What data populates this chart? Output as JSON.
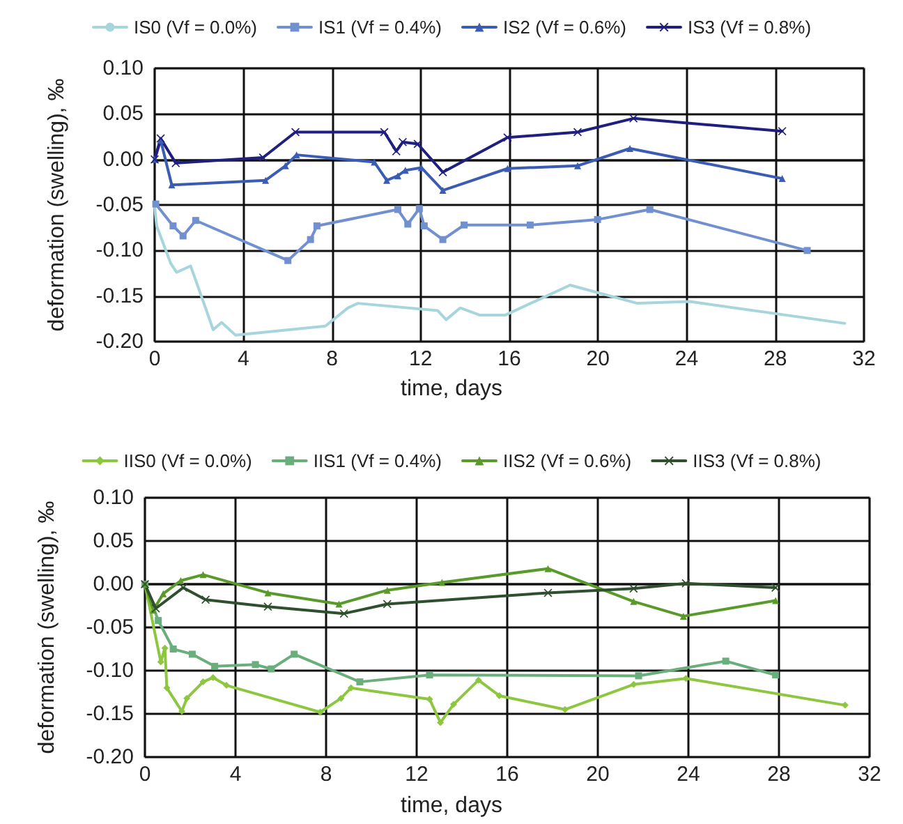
{
  "chart_data": [
    {
      "type": "line",
      "xlabel": "time, days",
      "ylabel": "deformation (swelling), ‰",
      "xlim": [
        0,
        32
      ],
      "xticks": [
        0,
        4,
        8,
        12,
        16,
        20,
        24,
        28,
        32
      ],
      "ylim": [
        -0.2,
        0.1
      ],
      "yticks": [
        {
          "value": -0.2,
          "label": "-0.20"
        },
        {
          "value": -0.15,
          "label": "-0.15"
        },
        {
          "value": -0.1,
          "label": "-0.10"
        },
        {
          "value": -0.05,
          "label": "-0.05"
        },
        {
          "value": 0,
          "label": "0.00"
        },
        {
          "value": 0.05,
          "label": "0.05"
        },
        {
          "value": 0.1,
          "label": "0.10"
        }
      ],
      "grid": true,
      "legend": "top",
      "series": [
        {
          "name": "IS0 (Vf = 0.0%)",
          "color": "#a6d5dc",
          "marker": "none",
          "x": [
            0,
            0.09,
            0.72,
            0.99,
            1.62,
            1.96,
            2.64,
            3.02,
            3.65,
            7.7,
            8.72,
            9.17,
            12.77,
            13.15,
            13.78,
            14.68,
            15.81,
            18.74,
            21.78,
            24.14,
            31.13
          ],
          "values": [
            -0.052,
            -0.073,
            -0.114,
            -0.124,
            -0.117,
            -0.14,
            -0.187,
            -0.179,
            -0.193,
            -0.183,
            -0.163,
            -0.158,
            -0.166,
            -0.176,
            -0.163,
            -0.171,
            -0.171,
            -0.138,
            -0.158,
            -0.156,
            -0.18
          ]
        },
        {
          "name": "IS1 (Vf = 0.4%)",
          "color": "#7090d0",
          "marker": "square",
          "x": [
            0.05,
            0.83,
            1.28,
            1.85,
            6.01,
            7.03,
            7.32,
            10.97,
            11.42,
            11.94,
            12.16,
            13.0,
            13.96,
            16.94,
            19.98,
            22.34,
            29.44
          ],
          "values": [
            -0.049,
            -0.073,
            -0.084,
            -0.067,
            -0.111,
            -0.088,
            -0.073,
            -0.055,
            -0.071,
            -0.054,
            -0.073,
            -0.088,
            -0.072,
            -0.072,
            -0.066,
            -0.055,
            -0.1
          ]
        },
        {
          "name": "IS2 (Vf = 0.6%)",
          "color": "#3b5cb5",
          "marker": "triangle",
          "x": [
            0,
            0.27,
            0.77,
            5.0,
            5.9,
            6.4,
            9.91,
            10.47,
            10.97,
            11.31,
            12.03,
            13.0,
            15.92,
            19.08,
            21.44,
            28.31
          ],
          "values": [
            0,
            0.021,
            -0.028,
            -0.023,
            -0.007,
            0.005,
            -0.003,
            -0.023,
            -0.018,
            -0.012,
            -0.009,
            -0.034,
            -0.01,
            -0.007,
            0.012,
            -0.021
          ]
        },
        {
          "name": "IS3 (Vf = 0.8%)",
          "color": "#1f1f80",
          "marker": "cross",
          "x": [
            0,
            0.27,
            0.95,
            4.89,
            6.35,
            10.36,
            10.9,
            11.19,
            11.87,
            13.0,
            15.92,
            19.08,
            21.6,
            28.31
          ],
          "values": [
            0,
            0.023,
            -0.004,
            0.002,
            0.03,
            0.03,
            0.009,
            0.019,
            0.017,
            -0.014,
            0.024,
            0.03,
            0.045,
            0.031
          ]
        }
      ]
    },
    {
      "type": "line",
      "xlabel": "time, days",
      "ylabel": "deformation (swelling), ‰",
      "xlim": [
        0,
        32
      ],
      "xticks": [
        0,
        4,
        8,
        12,
        16,
        20,
        24,
        28,
        32
      ],
      "ylim": [
        -0.2,
        0.1
      ],
      "yticks": [
        {
          "value": -0.2,
          "label": "-0.20"
        },
        {
          "value": -0.15,
          "label": "-0.15"
        },
        {
          "value": -0.1,
          "label": "-0.10"
        },
        {
          "value": -0.05,
          "label": "-0.05"
        },
        {
          "value": 0,
          "label": "0.00"
        },
        {
          "value": 0.05,
          "label": "0.05"
        },
        {
          "value": 0.1,
          "label": "0.10"
        }
      ],
      "grid": true,
      "legend": "top",
      "series": [
        {
          "name": "IIS0 (Vf = 0.0%)",
          "color": "#8dc63f",
          "marker": "diamond",
          "x": [
            0,
            0.7,
            0.88,
            0.97,
            1.63,
            1.85,
            2.57,
            3.01,
            3.6,
            7.74,
            8.66,
            9.1,
            12.57,
            13.05,
            13.63,
            14.73,
            15.65,
            18.55,
            21.58,
            23.89,
            30.92
          ],
          "values": [
            0,
            -0.09,
            -0.074,
            -0.12,
            -0.147,
            -0.132,
            -0.113,
            -0.108,
            -0.117,
            -0.148,
            -0.132,
            -0.12,
            -0.133,
            -0.16,
            -0.139,
            -0.111,
            -0.129,
            -0.145,
            -0.116,
            -0.109,
            -0.14
          ]
        },
        {
          "name": "IIS1 (Vf = 0.4%)",
          "color": "#6aae7c",
          "marker": "square",
          "x": [
            0,
            0.59,
            1.25,
            2.09,
            3.08,
            4.88,
            5.58,
            6.59,
            9.49,
            12.57,
            21.8,
            25.65,
            27.85
          ],
          "values": [
            0,
            -0.042,
            -0.075,
            -0.081,
            -0.095,
            -0.093,
            -0.098,
            -0.081,
            -0.113,
            -0.105,
            -0.106,
            -0.089,
            -0.105
          ]
        },
        {
          "name": "IIS2 (Vf = 0.6%)",
          "color": "#5a9a2a",
          "marker": "triangle",
          "x": [
            0,
            0.37,
            0.81,
            1.58,
            2.57,
            5.43,
            8.57,
            10.7,
            13.12,
            17.8,
            21.58,
            23.78,
            27.85
          ],
          "values": [
            0,
            -0.03,
            -0.011,
            0.004,
            0.011,
            -0.01,
            -0.023,
            -0.007,
            0.002,
            0.018,
            -0.02,
            -0.037,
            -0.019
          ]
        },
        {
          "name": "IIS3 (Vf = 0.8%)",
          "color": "#2f4f2f",
          "marker": "cross",
          "x": [
            0,
            0.48,
            1.69,
            2.68,
            5.43,
            8.79,
            10.7,
            17.8,
            21.58,
            23.89,
            27.85
          ],
          "values": [
            0,
            -0.028,
            -0.004,
            -0.018,
            -0.026,
            -0.034,
            -0.023,
            -0.01,
            -0.005,
            0.001,
            -0.004
          ]
        }
      ]
    }
  ]
}
